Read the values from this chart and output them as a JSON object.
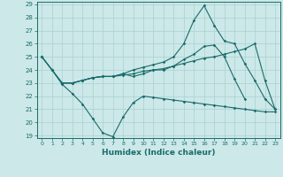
{
  "xlabel": "Humidex (Indice chaleur)",
  "x": [
    0,
    1,
    2,
    3,
    4,
    5,
    6,
    7,
    8,
    9,
    10,
    11,
    12,
    13,
    14,
    15,
    16,
    17,
    18,
    19,
    20,
    21,
    22,
    23
  ],
  "line_top": [
    25.0,
    24.0,
    23.0,
    null,
    null,
    null,
    null,
    null,
    null,
    null,
    24.0,
    24.5,
    25.0,
    25.5,
    26.5,
    28.2,
    29.0,
    27.5,
    null,
    null,
    null,
    null,
    null,
    null
  ],
  "line_mid_high": [
    null,
    null,
    null,
    null,
    null,
    null,
    null,
    null,
    null,
    null,
    null,
    null,
    null,
    null,
    null,
    null,
    null,
    null,
    null,
    null,
    null,
    null,
    null,
    null
  ],
  "line_straight": [
    25.0,
    24.0,
    23.0,
    23.0,
    23.2,
    23.4,
    23.5,
    23.5,
    23.6,
    23.7,
    23.9,
    24.0,
    24.1,
    24.3,
    24.5,
    24.7,
    24.9,
    25.0,
    25.2,
    25.4,
    25.6,
    26.0,
    23.2,
    21.0
  ],
  "line_upper": [
    25.0,
    24.0,
    23.0,
    23.0,
    23.2,
    23.4,
    23.5,
    23.5,
    23.7,
    24.0,
    24.2,
    24.4,
    24.6,
    25.0,
    26.0,
    27.8,
    28.9,
    27.4,
    26.2,
    26.0,
    24.5,
    23.2,
    21.8,
    21.0
  ],
  "line_lower": [
    25.0,
    24.0,
    22.9,
    22.2,
    21.4,
    20.3,
    19.2,
    18.9,
    20.4,
    21.5,
    22.0,
    21.9,
    21.8,
    21.7,
    21.6,
    21.5,
    21.4,
    21.3,
    21.2,
    21.1,
    21.0,
    20.9,
    20.8,
    20.8
  ],
  "line_mid": [
    null,
    null,
    23.0,
    23.0,
    23.2,
    23.4,
    23.5,
    23.5,
    23.7,
    23.5,
    23.7,
    24.0,
    24.0,
    24.3,
    24.8,
    25.2,
    25.8,
    25.9,
    25.0,
    23.3,
    21.8,
    null,
    null,
    null
  ],
  "ylim": [
    19,
    29
  ],
  "xlim": [
    -0.5,
    23.5
  ],
  "yticks": [
    19,
    20,
    21,
    22,
    23,
    24,
    25,
    26,
    27,
    28,
    29
  ],
  "xticks": [
    0,
    1,
    2,
    3,
    4,
    5,
    6,
    7,
    8,
    9,
    10,
    11,
    12,
    13,
    14,
    15,
    16,
    17,
    18,
    19,
    20,
    21,
    22,
    23
  ],
  "line_color": "#1a6b6b",
  "bg_color": "#cce8e8",
  "grid_color": "#aad0d0"
}
